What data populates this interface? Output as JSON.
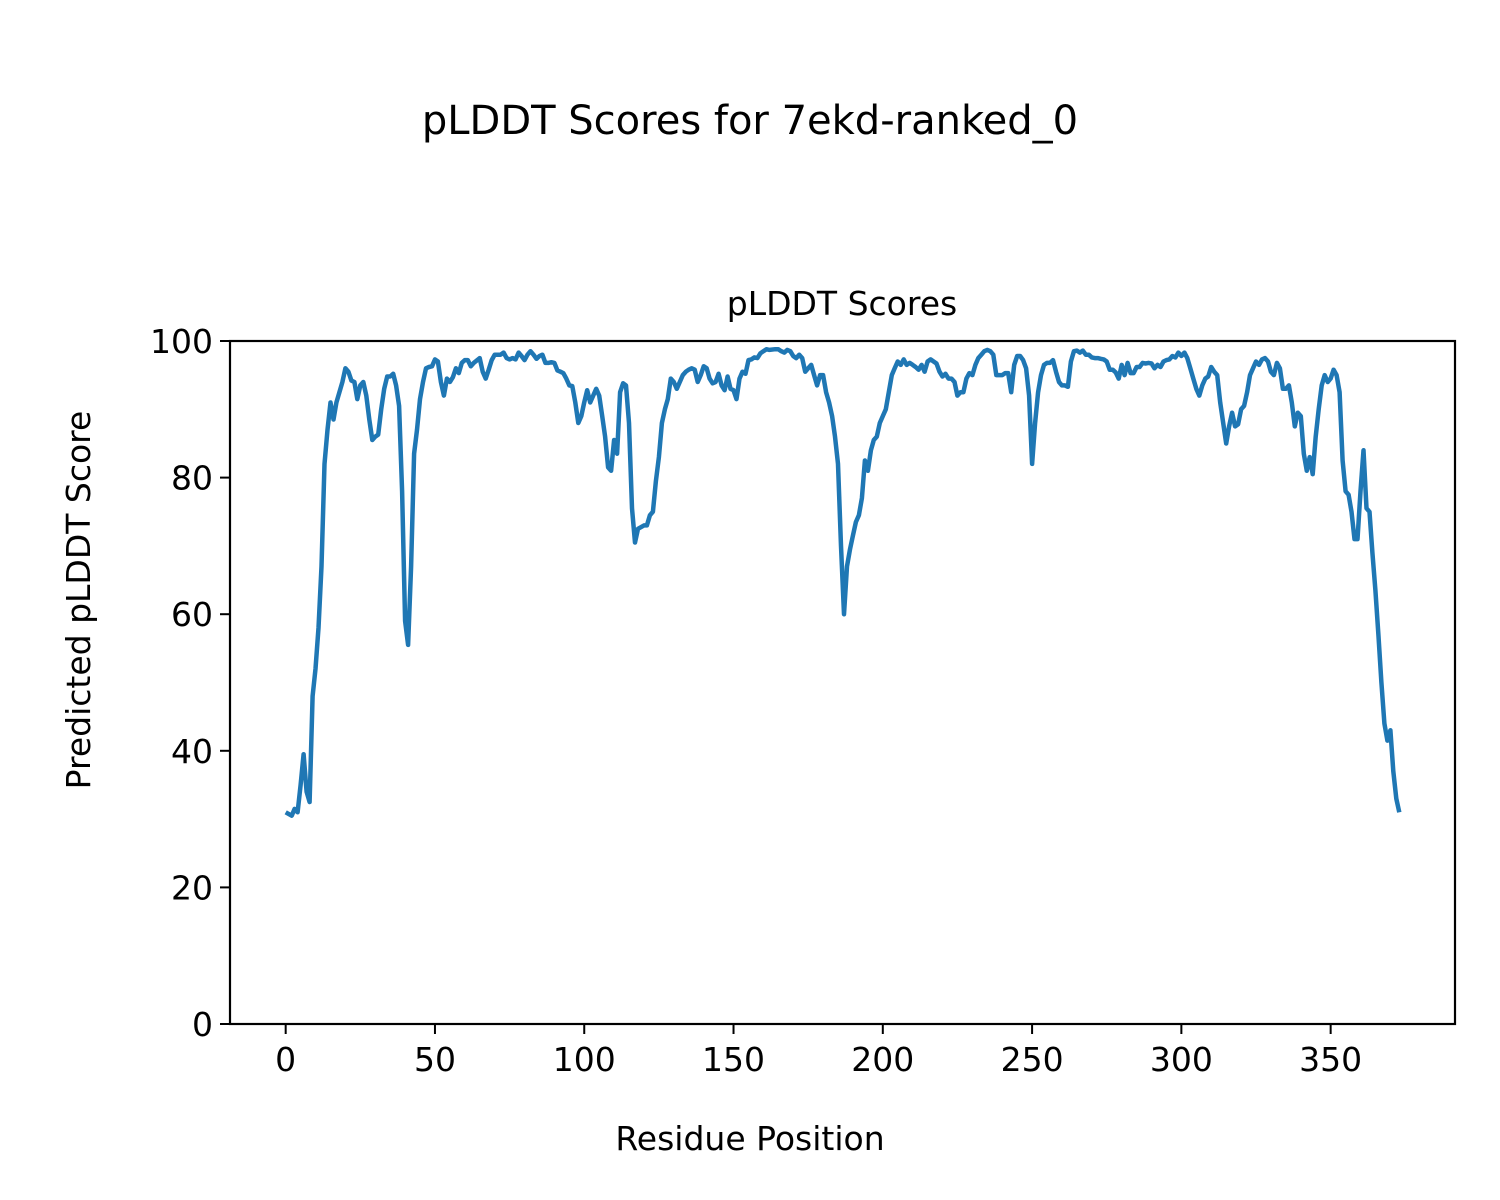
{
  "chart_data": {
    "type": "line",
    "suptitle": "pLDDT Scores for 7ekd-ranked_0",
    "title": "pLDDT Scores",
    "xlabel": "Residue Position",
    "ylabel": "Predicted pLDDT Score",
    "xlim": [
      -18.65,
      391.65
    ],
    "ylim": [
      0,
      100
    ],
    "xticks": [
      0,
      50,
      100,
      150,
      200,
      250,
      300,
      350
    ],
    "yticks": [
      0,
      20,
      40,
      60,
      80,
      100
    ],
    "grid": false,
    "line_color": "#1f77b4",
    "series": [
      {
        "name": "pLDDT",
        "x": [
          0,
          2,
          3,
          4,
          5,
          6,
          7,
          8,
          9,
          10,
          11,
          12,
          13,
          14,
          15,
          16,
          17,
          19,
          20,
          21,
          22,
          23,
          24,
          25,
          26,
          27,
          28,
          29,
          30,
          31,
          32,
          33,
          34,
          35,
          36,
          37,
          38,
          39,
          40,
          41,
          42,
          43,
          44,
          45,
          46,
          47,
          48,
          49,
          50,
          51,
          52,
          53,
          54,
          55,
          56,
          57,
          58,
          59,
          60,
          61,
          62,
          63,
          65,
          66,
          67,
          68,
          69,
          70,
          72,
          73,
          74,
          75,
          76,
          77,
          78,
          79,
          80,
          81,
          82,
          83,
          84,
          85,
          86,
          87,
          88,
          89,
          90,
          91,
          92,
          93,
          94,
          95,
          96,
          97,
          98,
          99,
          100,
          101,
          102,
          103,
          104,
          105,
          106,
          107,
          108,
          109,
          110,
          111,
          112,
          113,
          114,
          115,
          116,
          117,
          118,
          120,
          121,
          122,
          123,
          124,
          125,
          126,
          127,
          128,
          129,
          130,
          131,
          132,
          133,
          134,
          135,
          136,
          137,
          138,
          139,
          140,
          141,
          142,
          143,
          144,
          145,
          146,
          147,
          148,
          149,
          150,
          151,
          152,
          153,
          154,
          155,
          156,
          157,
          158,
          159,
          160,
          161,
          162,
          164,
          165,
          166,
          167,
          168,
          169,
          170,
          171,
          172,
          173,
          174,
          175,
          176,
          177,
          178,
          179,
          180,
          181,
          182,
          183,
          184,
          185,
          186,
          187,
          188,
          189,
          190,
          191,
          192,
          193,
          194,
          195,
          196,
          197,
          198,
          199,
          200,
          201,
          202,
          203,
          204,
          205,
          206,
          207,
          208,
          209,
          210,
          211,
          212,
          213,
          214,
          215,
          216,
          217,
          218,
          219,
          220,
          221,
          222,
          223,
          224,
          225,
          226,
          227,
          228,
          229,
          230,
          231,
          232,
          233,
          234,
          235,
          236,
          237,
          238,
          239,
          240,
          241,
          242,
          243,
          244,
          245,
          246,
          247,
          248,
          249,
          250,
          251,
          252,
          253,
          254,
          255,
          256,
          257,
          258,
          259,
          260,
          261,
          262,
          263,
          264,
          265,
          266,
          267,
          268,
          269,
          270,
          271,
          272,
          273,
          274,
          275,
          276,
          277,
          278,
          279,
          280,
          281,
          282,
          283,
          284,
          285,
          286,
          287,
          288,
          289,
          290,
          291,
          292,
          293,
          294,
          295,
          296,
          297,
          298,
          299,
          300,
          301,
          302,
          303,
          304,
          305,
          306,
          307,
          308,
          309,
          310,
          311,
          312,
          313,
          314,
          315,
          316,
          317,
          318,
          319,
          320,
          321,
          322,
          323,
          324,
          325,
          326,
          327,
          328,
          329,
          330,
          331,
          332,
          333,
          334,
          335,
          336,
          337,
          338,
          339,
          340,
          341,
          342,
          343,
          344,
          345,
          346,
          347,
          348,
          349,
          350,
          351,
          352,
          353,
          354,
          355,
          356,
          357,
          358,
          359,
          360,
          361,
          362,
          363,
          364,
          365,
          366,
          367,
          368,
          369,
          370,
          371,
          372,
          373
        ],
        "y": [
          31,
          30.5,
          31.5,
          31,
          35,
          39.5,
          34,
          32.5,
          48,
          52,
          58,
          67,
          82,
          87,
          91,
          88.5,
          91,
          94,
          96,
          95.5,
          94.2,
          94,
          91.5,
          93.5,
          94,
          92,
          88.5,
          85.5,
          86,
          86.3,
          90,
          93,
          94.8,
          94.8,
          95.2,
          93.5,
          90.5,
          78,
          59,
          55.5,
          67,
          83.5,
          87,
          91.5,
          94,
          96,
          96.2,
          96.3,
          97.3,
          97,
          94,
          92,
          94.5,
          94,
          94.7,
          96,
          95.3,
          96.8,
          97.2,
          97.2,
          96.3,
          96.8,
          97.5,
          95.5,
          94.5,
          95.8,
          97.2,
          98,
          98,
          98.3,
          97.5,
          97.3,
          97.5,
          97.3,
          98.3,
          97.8,
          97.2,
          98,
          98.5,
          98,
          97.4,
          97.8,
          98,
          96.8,
          96.8,
          96.9,
          96.8,
          95.7,
          95.5,
          95.3,
          94.5,
          93.5,
          93.4,
          91,
          88,
          89,
          91,
          92.8,
          91,
          92,
          93,
          92,
          89,
          86,
          81.5,
          81,
          85.5,
          83.5,
          92.5,
          93.8,
          93.5,
          88,
          75.5,
          70.5,
          72.5,
          73,
          73,
          74.5,
          75,
          79.5,
          83,
          88,
          90,
          91.5,
          94.5,
          94,
          93,
          94,
          95,
          95.5,
          95.8,
          96,
          95.8,
          94,
          95,
          96.3,
          96,
          94.5,
          93.8,
          94,
          95.2,
          93.5,
          92.8,
          94.8,
          93,
          92.8,
          91.5,
          94.5,
          95.5,
          95.2,
          97.2,
          97.3,
          97.6,
          97.5,
          98.2,
          98.5,
          98.8,
          98.7,
          98.8,
          98.8,
          98.5,
          98.3,
          98.7,
          98.5,
          97.8,
          97.5,
          98,
          97.5,
          95.5,
          96,
          96.5,
          95,
          93.5,
          95,
          95,
          92.5,
          91,
          89,
          86,
          82,
          70,
          60,
          67,
          69.5,
          71.5,
          73.5,
          74.5,
          77,
          82.5,
          81,
          84,
          85.5,
          86,
          88,
          89,
          90,
          92.5,
          95,
          96,
          97,
          96.5,
          97.3,
          96.5,
          96.8,
          96.5,
          96.2,
          95.8,
          96.5,
          95.5,
          97,
          97.3,
          97,
          96.7,
          95.5,
          94.8,
          95.2,
          94.5,
          94.5,
          94,
          92,
          92.5,
          92.5,
          94.5,
          95.3,
          95,
          96.5,
          97.5,
          98,
          98.5,
          98.7,
          98.5,
          98,
          95,
          95,
          95,
          95.3,
          95.3,
          92.5,
          96.5,
          97.8,
          97.8,
          97.2,
          96,
          92,
          82,
          88,
          92.5,
          95,
          96.5,
          96.8,
          96.8,
          97.2,
          95.5,
          94,
          93.5,
          93.5,
          93.3,
          97,
          98.5,
          98.6,
          98.3,
          98.6,
          98,
          98,
          97.6,
          97.5,
          97.5,
          97.4,
          97.3,
          97,
          95.8,
          95.8,
          95.4,
          94.5,
          96.5,
          95,
          96.8,
          95.3,
          95.3,
          96.2,
          96.2,
          96.8,
          96.7,
          96.8,
          96.7,
          96,
          96.5,
          96.2,
          97,
          97.2,
          97.3,
          97.8,
          97.6,
          98.3,
          97.8,
          98.3,
          97.5,
          96,
          94.5,
          93,
          92,
          93.5,
          94.5,
          94.8,
          96.2,
          95.5,
          95,
          91,
          88,
          85,
          87.5,
          89.5,
          87.5,
          87.8,
          90,
          90.5,
          92.5,
          95,
          96,
          97,
          96.5,
          97.3,
          97.5,
          97,
          95.5,
          95,
          96.8,
          96,
          93,
          93,
          93.5,
          91,
          87.5,
          89.5,
          89,
          83.5,
          81,
          83,
          80.5,
          86,
          90,
          93.5,
          95,
          94,
          94.5,
          95.8,
          95,
          92.5,
          82.5,
          78,
          77.5,
          75,
          71,
          71,
          78,
          84,
          75.5,
          75,
          69,
          63.5,
          57,
          50,
          44,
          41.5,
          43,
          37,
          33,
          31
        ]
      }
    ]
  }
}
